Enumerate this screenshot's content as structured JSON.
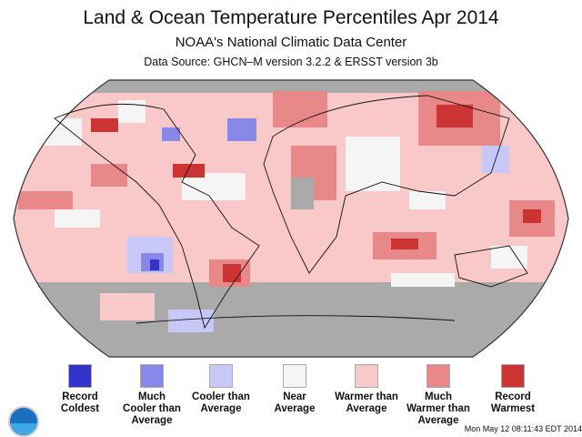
{
  "title": "Land & Ocean Temperature Percentiles Apr 2014",
  "subtitle": "NOAA's National Climatic Data Center",
  "source": "Data Source: GHCN–M version 3.2.2 & ERSST version 3b",
  "legend": [
    {
      "line1": "Record",
      "line2": "Coldest",
      "line3": "",
      "color": "#3333cc"
    },
    {
      "line1": "Much",
      "line2": "Cooler than",
      "line3": "Average",
      "color": "#8888e8"
    },
    {
      "line1": "Cooler than",
      "line2": "Average",
      "line3": "",
      "color": "#c8c8f8"
    },
    {
      "line1": "Near",
      "line2": "Average",
      "line3": "",
      "color": "#f5f5f5"
    },
    {
      "line1": "Warmer than",
      "line2": "Average",
      "line3": "",
      "color": "#f9c8c8"
    },
    {
      "line1": "Much",
      "line2": "Warmer than",
      "line3": "Average",
      "color": "#e88888"
    },
    {
      "line1": "Record",
      "line2": "Warmest",
      "line3": "",
      "color": "#cc3333"
    }
  ],
  "logo_text": "NOAA",
  "timestamp": "Mon May 12 08:11:43 EDT 2014"
}
